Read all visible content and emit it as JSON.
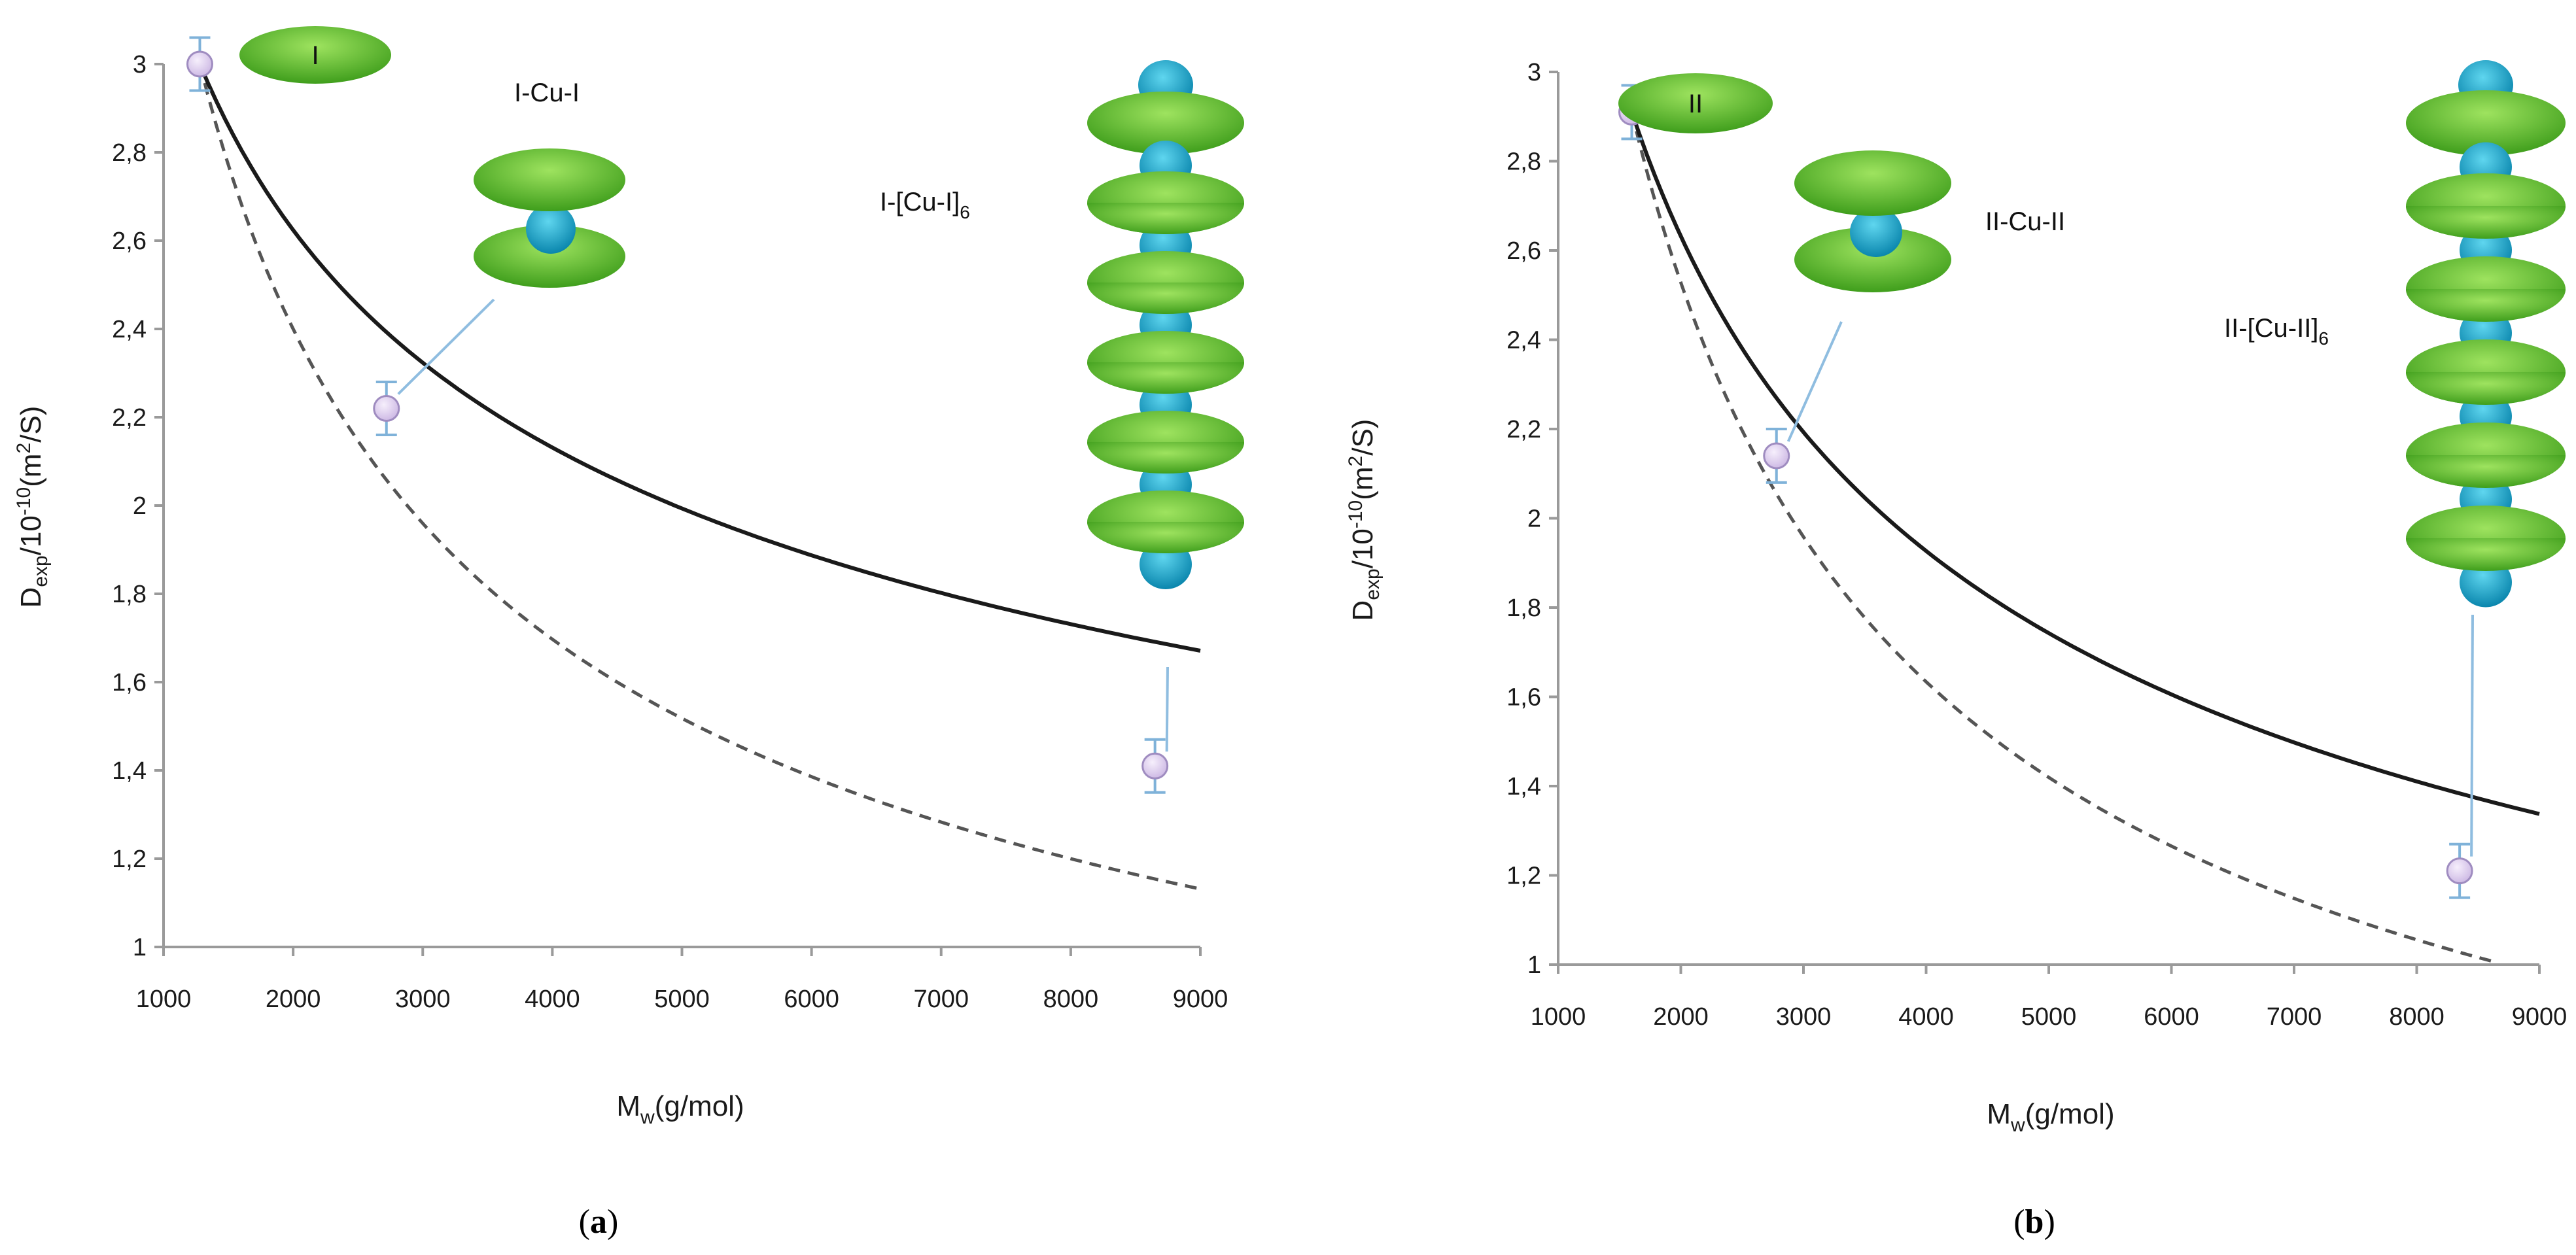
{
  "colors": {
    "disk": "#5cbf2a",
    "disk_light": "#8fdc55",
    "copper": "#1aa7c9",
    "copper_light": "#53d1ec",
    "point_fill": "#e4d6f2",
    "point_stroke": "#9f8cc0",
    "errorbar": "#7fb2d9",
    "leader": "#8fbde0",
    "fit_solid": "#1a1a1a",
    "fit_dashed": "#555555"
  },
  "chart_data": [
    {
      "type": "scatter",
      "panel_label": "a",
      "title": "",
      "xlabel_main": "M",
      "xlabel_sub": "w",
      "xlabel_rest": "(g/mol)",
      "ylabel_main": "D",
      "ylabel_sub": "exp",
      "ylabel_mid": "/10",
      "ylabel_sup1": "-10",
      "ylabel_mid2": "(m",
      "ylabel_sup2": "2",
      "ylabel_end": "/S)",
      "xlim": [
        1000,
        9000
      ],
      "ylim": [
        1,
        3
      ],
      "xticks": [
        1000,
        2000,
        3000,
        4000,
        5000,
        6000,
        7000,
        8000,
        9000
      ],
      "xtick_labels": [
        "1000",
        "2000",
        "3000",
        "4000",
        "5000",
        "6000",
        "7000",
        "8000",
        "9000"
      ],
      "yticks": [
        1,
        1.2,
        1.4,
        1.6,
        1.8,
        2,
        2.2,
        2.4,
        2.6,
        2.8,
        3
      ],
      "ytick_labels": [
        "1",
        "1,2",
        "1,4",
        "1,6",
        "1,8",
        "2",
        "2,2",
        "2,4",
        "2,6",
        "2,8",
        "3"
      ],
      "points": [
        {
          "x": 1280,
          "y": 3.0,
          "err": 0.06
        },
        {
          "x": 2720,
          "y": 2.22,
          "err": 0.06
        },
        {
          "x": 8650,
          "y": 1.41,
          "err": 0.06
        }
      ],
      "series": [
        {
          "name": "solid fit",
          "style": "solid",
          "x0": 1280,
          "y0": 3.0,
          "exponent": 0.3,
          "x_end": 9000
        },
        {
          "name": "dashed fit",
          "style": "dashed",
          "x0": 1280,
          "y0": 3.0,
          "exponent": 0.5,
          "x_end": 9000
        }
      ],
      "annotations": {
        "monomer": {
          "label": "I"
        },
        "dimer": {
          "label": "I-Cu-I"
        },
        "polymer": {
          "label_main": "I-[Cu-I]",
          "label_sub": "6"
        }
      }
    },
    {
      "type": "scatter",
      "panel_label": "b",
      "title": "",
      "xlabel_main": "M",
      "xlabel_sub": "w",
      "xlabel_rest": "(g/mol)",
      "ylabel_main": "D",
      "ylabel_sub": "exp",
      "ylabel_mid": "/10",
      "ylabel_sup1": "-10",
      "ylabel_mid2": "(m",
      "ylabel_sup2": "2",
      "ylabel_end": "/S)",
      "xlim": [
        1000,
        9000
      ],
      "ylim": [
        1,
        3
      ],
      "xticks": [
        1000,
        2000,
        3000,
        4000,
        5000,
        6000,
        7000,
        8000,
        9000
      ],
      "xtick_labels": [
        "1000",
        "2000",
        "3000",
        "4000",
        "5000",
        "6000",
        "7000",
        "8000",
        "9000"
      ],
      "yticks": [
        1,
        1.2,
        1.4,
        1.6,
        1.8,
        2,
        2.2,
        2.4,
        2.6,
        2.8,
        3
      ],
      "ytick_labels": [
        "1",
        "1,2",
        "1,4",
        "1,6",
        "1,8",
        "2",
        "2,2",
        "2,4",
        "2,6",
        "2,8",
        "3"
      ],
      "points": [
        {
          "x": 1600,
          "y": 2.91,
          "err": 0.06
        },
        {
          "x": 2780,
          "y": 2.14,
          "err": 0.06
        },
        {
          "x": 8350,
          "y": 1.21,
          "err": 0.06
        }
      ],
      "series": [
        {
          "name": "solid fit",
          "style": "solid",
          "x0": 1600,
          "y0": 2.91,
          "exponent": 0.45,
          "x_end": 9000
        },
        {
          "name": "dashed fit",
          "style": "dashed",
          "x0": 1600,
          "y0": 2.91,
          "exponent": 0.63,
          "x_end": 8650
        }
      ],
      "annotations": {
        "monomer": {
          "label": "II"
        },
        "dimer": {
          "label": "II-Cu-II"
        },
        "polymer": {
          "label_main": "II-[Cu-II]",
          "label_sub": "6"
        }
      }
    }
  ]
}
